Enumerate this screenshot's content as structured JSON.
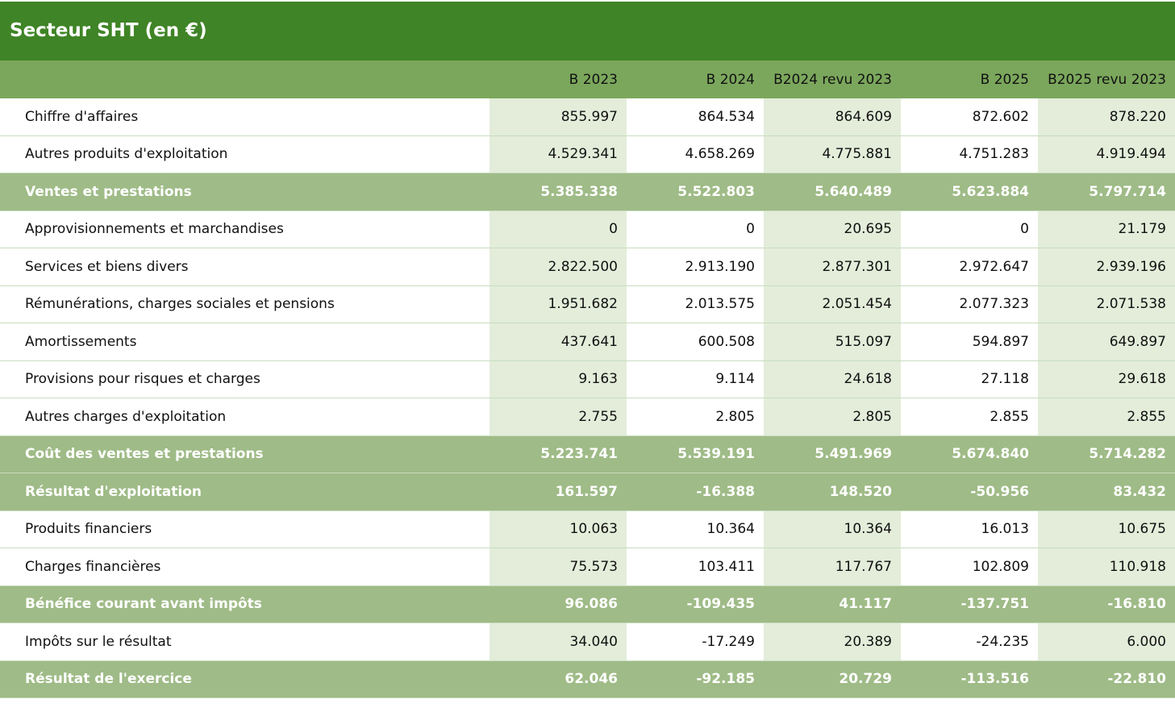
{
  "header": {
    "title": "Secteur SHT (en €)"
  },
  "table": {
    "columns": [
      "B 2023",
      "B 2024",
      "B2024 revu 2023",
      "B 2025",
      "B2025 revu 2023"
    ],
    "rows": [
      {
        "label": "Chiffre d'affaires",
        "values": [
          "855.997",
          "864.534",
          "864.609",
          "872.602",
          "878.220"
        ]
      },
      {
        "label": "Autres produits d'exploitation",
        "values": [
          "4.529.341",
          "4.658.269",
          "4.775.881",
          "4.751.283",
          "4.919.494"
        ]
      },
      {
        "label": "Ventes et prestations",
        "values": [
          "5.385.338",
          "5.522.803",
          "5.640.489",
          "5.623.884",
          "5.797.714"
        ]
      },
      {
        "label": "Approvisionnements et marchandises",
        "values": [
          "0",
          "0",
          "20.695",
          "0",
          "21.179"
        ]
      },
      {
        "label": "Services et biens divers",
        "values": [
          "2.822.500",
          "2.913.190",
          "2.877.301",
          "2.972.647",
          "2.939.196"
        ]
      },
      {
        "label": "Rémunérations, charges sociales et pensions",
        "values": [
          "1.951.682",
          "2.013.575",
          "2.051.454",
          "2.077.323",
          "2.071.538"
        ]
      },
      {
        "label": "Amortissements",
        "values": [
          "437.641",
          "600.508",
          "515.097",
          "594.897",
          "649.897"
        ]
      },
      {
        "label": "Provisions pour risques et charges",
        "values": [
          "9.163",
          "9.114",
          "24.618",
          "27.118",
          "29.618"
        ]
      },
      {
        "label": "Autres charges d'exploitation",
        "values": [
          "2.755",
          "2.805",
          "2.805",
          "2.855",
          "2.855"
        ]
      },
      {
        "label": "Coût des ventes et prestations",
        "values": [
          "5.223.741",
          "5.539.191",
          "5.491.969",
          "5.674.840",
          "5.714.282"
        ]
      },
      {
        "label": "Résultat d'exploitation",
        "values": [
          "161.597",
          "-16.388",
          "148.520",
          "-50.956",
          "83.432"
        ]
      },
      {
        "label": "Produits financiers",
        "values": [
          "10.063",
          "10.364",
          "10.364",
          "16.013",
          "10.675"
        ]
      },
      {
        "label": "Charges financières",
        "values": [
          "75.573",
          "103.411",
          "117.767",
          "102.809",
          "110.918"
        ]
      },
      {
        "label": "Bénéfice courant avant impôts",
        "values": [
          "96.086",
          "-109.435",
          "41.117",
          "-137.751",
          "-16.810"
        ]
      },
      {
        "label": "Impôts sur le résultat",
        "values": [
          "34.040",
          "-17.249",
          "20.389",
          "-24.235",
          "6.000"
        ]
      },
      {
        "label": "Résultat de l'exercice",
        "values": [
          "62.046",
          "-92.185",
          "20.729",
          "-113.516",
          "-22.810"
        ]
      }
    ]
  }
}
